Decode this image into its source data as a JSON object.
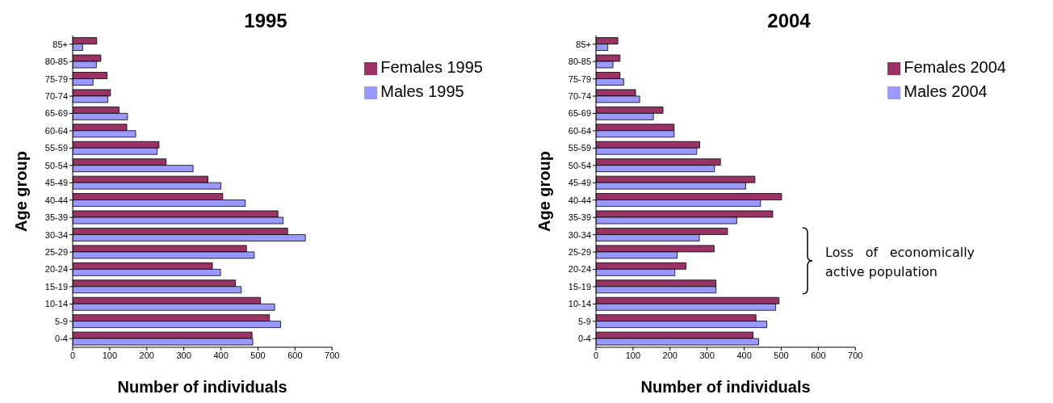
{
  "chart_data": [
    {
      "type": "bar",
      "orientation": "horizontal",
      "title": "1995",
      "xlabel": "Number of individuals",
      "ylabel": "Age group",
      "categories": [
        "85+",
        "80-85",
        "75-79",
        "70-74",
        "65-69",
        "60-64",
        "55-59",
        "50-54",
        "45-49",
        "40-44",
        "35-39",
        "30-34",
        "25-29",
        "20-24",
        "15-19",
        "10-14",
        "5-9",
        "0-4"
      ],
      "series": [
        {
          "name": "Females 1995",
          "color": "#993366",
          "values": [
            65,
            76,
            93,
            102,
            125,
            146,
            233,
            252,
            365,
            405,
            554,
            580,
            469,
            377,
            439,
            507,
            531,
            484
          ]
        },
        {
          "name": "Males 1995",
          "color": "#9999ff",
          "values": [
            27,
            64,
            55,
            95,
            148,
            170,
            228,
            325,
            400,
            466,
            568,
            628,
            490,
            399,
            455,
            545,
            561,
            486
          ]
        }
      ],
      "xlim": [
        0,
        700
      ],
      "xticks": [
        0,
        100,
        200,
        300,
        400,
        500,
        600,
        700
      ],
      "grid": false,
      "legend": "top right"
    },
    {
      "type": "bar",
      "orientation": "horizontal",
      "title": "2004",
      "xlabel": "Number of individuals",
      "ylabel": "Age group",
      "categories": [
        "85+",
        "80-85",
        "75-79",
        "70-74",
        "65-69",
        "60-64",
        "55-59",
        "50-54",
        "45-49",
        "40-44",
        "35-39",
        "30-34",
        "25-29",
        "20-24",
        "15-19",
        "10-14",
        "5-9",
        "0-4"
      ],
      "series": [
        {
          "name": "Females 2004",
          "color": "#993366",
          "values": [
            59,
            65,
            65,
            107,
            181,
            211,
            280,
            336,
            429,
            501,
            477,
            355,
            319,
            243,
            324,
            494,
            432,
            424
          ]
        },
        {
          "name": "Males 2004",
          "color": "#9999ff",
          "values": [
            32,
            46,
            75,
            118,
            155,
            211,
            272,
            320,
            404,
            444,
            380,
            279,
            219,
            213,
            324,
            485,
            461,
            439
          ]
        }
      ],
      "xlim": [
        0,
        700
      ],
      "xticks": [
        0,
        100,
        200,
        300,
        400,
        500,
        600,
        700
      ],
      "grid": false,
      "legend": "top right",
      "annotations": [
        "Loss of economically active population"
      ]
    }
  ]
}
